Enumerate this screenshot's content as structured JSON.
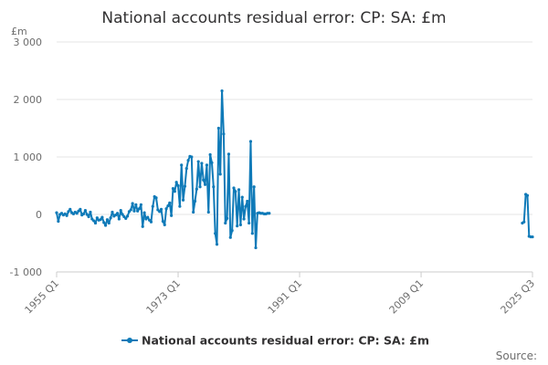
{
  "chart_data": {
    "type": "line",
    "title": "National accounts residual error: CP: SA: £m",
    "ylabel": "£m",
    "ylim": [
      -1000,
      3000
    ],
    "yticks": [
      -1000,
      0,
      1000,
      2000,
      3000
    ],
    "ytick_labels": [
      "-1 000",
      "0",
      "1 000",
      "2 000",
      "3 000"
    ],
    "xticks": [
      "1955 Q1",
      "1973 Q1",
      "1991 Q1",
      "2009 Q1",
      "2025 Q3"
    ],
    "x_start": "1955 Q1",
    "x_end": "2025 Q3",
    "grid": true,
    "legend_position": "bottom",
    "source_label": "Source:",
    "color": "#0f7ab8",
    "series": [
      {
        "name": "National accounts residual error: CP: SA: £m",
        "segments": [
          {
            "start": "1955 Q1",
            "values": [
              30,
              -120,
              0,
              20,
              -10,
              10,
              -20,
              50,
              90,
              30,
              10,
              40,
              20,
              60,
              90,
              -10,
              10,
              70,
              0,
              -40,
              40,
              -80,
              -110,
              -150,
              -60,
              -100,
              -90,
              -50,
              -140,
              -190,
              -90,
              -150,
              -60,
              40,
              -30,
              -10,
              20,
              -80,
              70,
              0,
              -40,
              -70,
              -30,
              50,
              80,
              190,
              60,
              170,
              60,
              100,
              170,
              -210,
              30,
              -80,
              -50,
              -100,
              -130,
              140,
              310,
              290,
              80,
              50,
              90,
              -120,
              -180,
              100,
              150,
              200,
              -20,
              450,
              400,
              560,
              500,
              140,
              860,
              250,
              490,
              800,
              940,
              1010,
              1000,
              40,
              230,
              440,
              920,
              480,
              890,
              600,
              520,
              860,
              40,
              1040,
              900,
              480,
              -330,
              -520,
              1500,
              700,
              2150,
              1400,
              -150,
              -70,
              1050,
              -400,
              -280,
              460,
              400,
              -200,
              430,
              -180,
              300,
              -80,
              140,
              230,
              -150,
              1270,
              -330,
              480,
              -580,
              20,
              30,
              20,
              20,
              10,
              10,
              20,
              20
            ]
          },
          {
            "start": "2024 Q1",
            "values": [
              -150,
              -130,
              350,
              330,
              -380,
              -390,
              -390
            ]
          }
        ]
      }
    ]
  }
}
